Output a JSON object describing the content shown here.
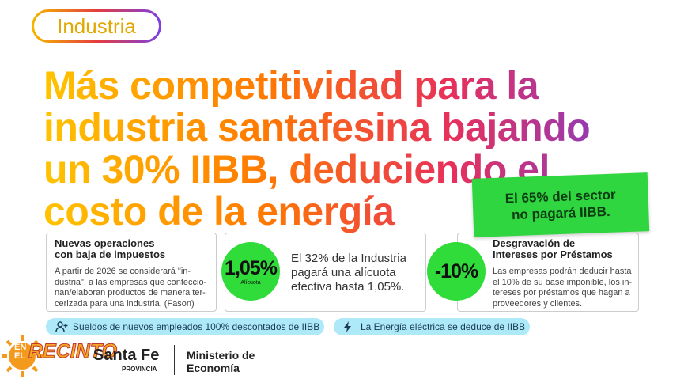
{
  "tag": "Industria",
  "headline": {
    "lines": [
      "Más competitividad para la",
      "industria santafesina bajando",
      "un 30% IIBB, deduciendo el",
      "costo de la energía"
    ]
  },
  "badge": {
    "lines": [
      "El 65% del sector",
      "no pagará  IIBB."
    ]
  },
  "cards": [
    {
      "title": [
        "Nuevas operaciones",
        "con baja de impuestos"
      ],
      "body": "A partir de 2026 se considerará \"in-dustria\", a las empresas que confeccio-nan/elaboran productos de manera ter-cerizada para una industria. (Fason)"
    },
    {
      "circle": "1,05%",
      "circle_caption": "Alícuota",
      "body": "El 32% de la Industria pagará una alícuota efectiva hasta 1,05%."
    },
    {
      "circle": "-10%",
      "title": [
        "Desgravación de",
        "Intereses por Préstamos"
      ],
      "body": "Las empresas podrán deducir hasta el 10% de su base imponible, los in-tereses por préstamos que hagan a proveedores y clientes."
    }
  ],
  "pills": [
    "Sueldos de nuevos empleados 100% descontados de IIBB",
    "La Energía eléctrica se deduce de IIBB"
  ],
  "footer": {
    "logo": [
      "EN",
      "EL",
      "RECINTO"
    ],
    "brand": "Santa Fe",
    "brand_sub": "PROVINCIA",
    "ministry": [
      "Ministerio de",
      "Economía"
    ]
  }
}
